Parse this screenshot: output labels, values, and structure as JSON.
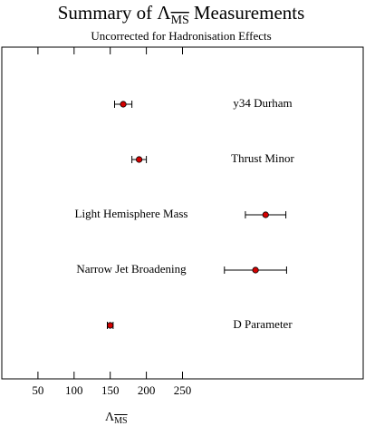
{
  "chart_data": {
    "type": "dot",
    "title_prefix": "Summary of Λ",
    "title_subscript": "MS",
    "title_suffix": "Measurements",
    "subtitle": "Uncorrected for Hadronisation Effects",
    "xlabel": "Λ",
    "xlabel_subscript": "MS",
    "categories": [
      "y34 Durham",
      "Thrust Minor",
      "Light Hemisphere Mass",
      "Narrow Jet Broadening",
      "D Parameter"
    ],
    "values": [
      168,
      190,
      365,
      351,
      150
    ],
    "errors": [
      12,
      10,
      28,
      43,
      4
    ],
    "color": "#d40000",
    "xlim": [
      0,
      500
    ],
    "xticks": [
      50,
      100,
      150,
      200,
      250
    ]
  }
}
